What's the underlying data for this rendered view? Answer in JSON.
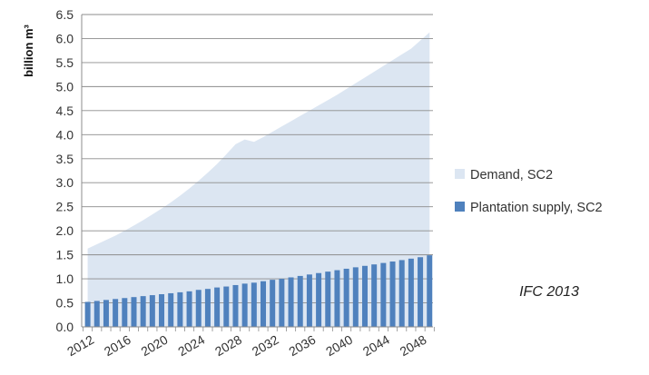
{
  "chart_data": {
    "type": "area",
    "ylabel": "billion m³",
    "ylim": [
      0,
      6.5
    ],
    "yticks": [
      "0.0",
      "0.5",
      "1.0",
      "1.5",
      "2.0",
      "2.5",
      "3.0",
      "3.5",
      "4.0",
      "4.5",
      "5.0",
      "5.5",
      "6.0",
      "6.5"
    ],
    "xtick_labels": [
      "2012",
      "2016",
      "2020",
      "2024",
      "2028",
      "2032",
      "2036",
      "2040",
      "2044",
      "2048"
    ],
    "x": [
      2012,
      2013,
      2014,
      2015,
      2016,
      2017,
      2018,
      2019,
      2020,
      2021,
      2022,
      2023,
      2024,
      2025,
      2026,
      2027,
      2028,
      2029,
      2030,
      2031,
      2032,
      2033,
      2034,
      2035,
      2036,
      2037,
      2038,
      2039,
      2040,
      2041,
      2042,
      2043,
      2044,
      2045,
      2046,
      2047,
      2048,
      2049
    ],
    "grid": true,
    "legend_position": "right",
    "series": [
      {
        "name": "Demand, SC2",
        "type": "area",
        "color": "#dce6f2",
        "values": [
          1.63,
          1.72,
          1.81,
          1.9,
          2.0,
          2.11,
          2.22,
          2.34,
          2.46,
          2.59,
          2.73,
          2.88,
          3.04,
          3.21,
          3.39,
          3.59,
          3.8,
          3.9,
          3.85,
          3.95,
          4.06,
          4.17,
          4.28,
          4.39,
          4.5,
          4.61,
          4.72,
          4.83,
          4.95,
          5.07,
          5.19,
          5.31,
          5.43,
          5.55,
          5.67,
          5.79,
          5.96,
          6.13
        ]
      },
      {
        "name": "Plantation supply, SC2",
        "type": "bar",
        "color": "#4f81bd",
        "values": [
          0.52,
          0.54,
          0.56,
          0.58,
          0.6,
          0.62,
          0.64,
          0.66,
          0.68,
          0.7,
          0.72,
          0.74,
          0.77,
          0.79,
          0.82,
          0.84,
          0.87,
          0.9,
          0.92,
          0.95,
          0.98,
          1.0,
          1.03,
          1.06,
          1.09,
          1.12,
          1.15,
          1.18,
          1.21,
          1.24,
          1.27,
          1.3,
          1.33,
          1.36,
          1.39,
          1.42,
          1.45,
          1.49
        ]
      }
    ],
    "annotations": [
      "IFC 2013"
    ]
  }
}
